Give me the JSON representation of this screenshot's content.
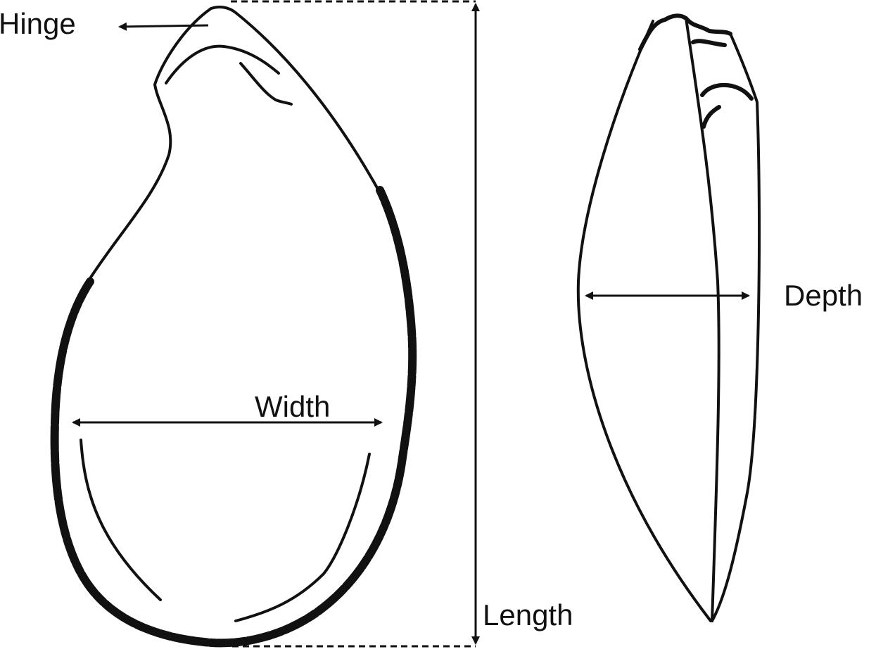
{
  "labels": {
    "hinge": "Hinge",
    "width": "Width",
    "length": "Length",
    "depth": "Depth"
  },
  "colors": {
    "stroke": "#111111",
    "background": "#ffffff"
  }
}
